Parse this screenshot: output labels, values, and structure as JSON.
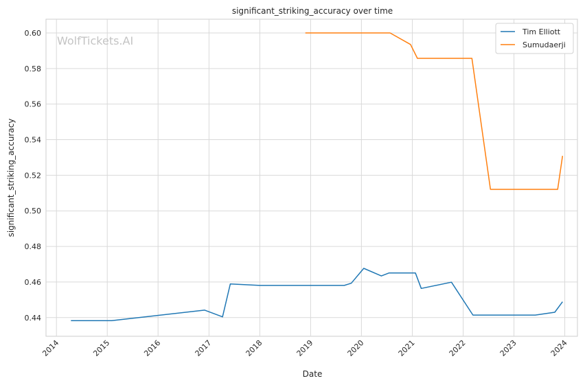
{
  "chart_data": {
    "type": "line",
    "title": "significant_striking_accuracy over time",
    "xlabel": "Date",
    "ylabel": "significant_striking_accuracy",
    "watermark": "WolfTickets.AI",
    "x_ticks": [
      "2014",
      "2015",
      "2016",
      "2017",
      "2018",
      "2019",
      "2020",
      "2021",
      "2022",
      "2023",
      "2024"
    ],
    "y_ticks": [
      "0.44",
      "0.46",
      "0.48",
      "0.50",
      "0.52",
      "0.54",
      "0.56",
      "0.58",
      "0.60"
    ],
    "xlim": [
      "2013-10-18",
      "2024-04-01"
    ],
    "ylim": [
      0.4295,
      0.6077
    ],
    "grid": true,
    "legend_position": "top-right",
    "series": [
      {
        "name": "Tim Elliott",
        "color": "#1f77b4",
        "points": [
          [
            "2014-04-15",
            0.4383
          ],
          [
            "2015-02-01",
            0.4383
          ],
          [
            "2016-12-01",
            0.4442
          ],
          [
            "2017-04-08",
            0.4404
          ],
          [
            "2017-06-03",
            0.4589
          ],
          [
            "2018-01-01",
            0.4581
          ],
          [
            "2019-08-31",
            0.4581
          ],
          [
            "2019-10-20",
            0.4593
          ],
          [
            "2020-01-18",
            0.4677
          ],
          [
            "2020-05-23",
            0.4634
          ],
          [
            "2020-07-18",
            0.4651
          ],
          [
            "2021-01-23",
            0.4651
          ],
          [
            "2021-03-06",
            0.4564
          ],
          [
            "2021-10-09",
            0.4599
          ],
          [
            "2022-03-12",
            0.4414
          ],
          [
            "2023-06-03",
            0.4414
          ],
          [
            "2023-10-21",
            0.443
          ],
          [
            "2023-12-16",
            0.4489
          ]
        ]
      },
      {
        "name": "Sumudaerji",
        "color": "#ff7f0e",
        "points": [
          [
            "2018-11-24",
            0.6
          ],
          [
            "2020-07-25",
            0.6
          ],
          [
            "2020-12-19",
            0.5935
          ],
          [
            "2021-02-06",
            0.5857
          ],
          [
            "2022-03-05",
            0.5857
          ],
          [
            "2022-07-16",
            0.5121
          ],
          [
            "2023-11-11",
            0.5121
          ],
          [
            "2023-12-16",
            0.5309
          ]
        ]
      }
    ]
  }
}
